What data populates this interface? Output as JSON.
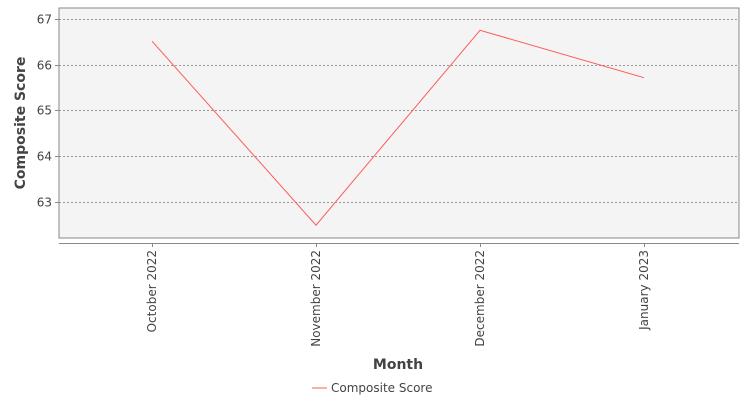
{
  "chart_data": {
    "type": "line",
    "title": "",
    "xlabel": "Month",
    "ylabel": "Composite Score",
    "categories": [
      "October 2022",
      "November 2022",
      "December 2022",
      "January 2023"
    ],
    "series": [
      {
        "name": "Composite Score",
        "values": [
          66.52,
          62.48,
          66.76,
          65.72
        ],
        "color": "#ff5a5a"
      }
    ],
    "yticks": [
      63,
      64,
      65,
      66,
      67
    ],
    "ylim": [
      62.2,
      67.25
    ],
    "grid": true,
    "legend_position": "bottom-center",
    "plot_background": "#f4f4f4",
    "grid_color": "#7a7a7a"
  }
}
